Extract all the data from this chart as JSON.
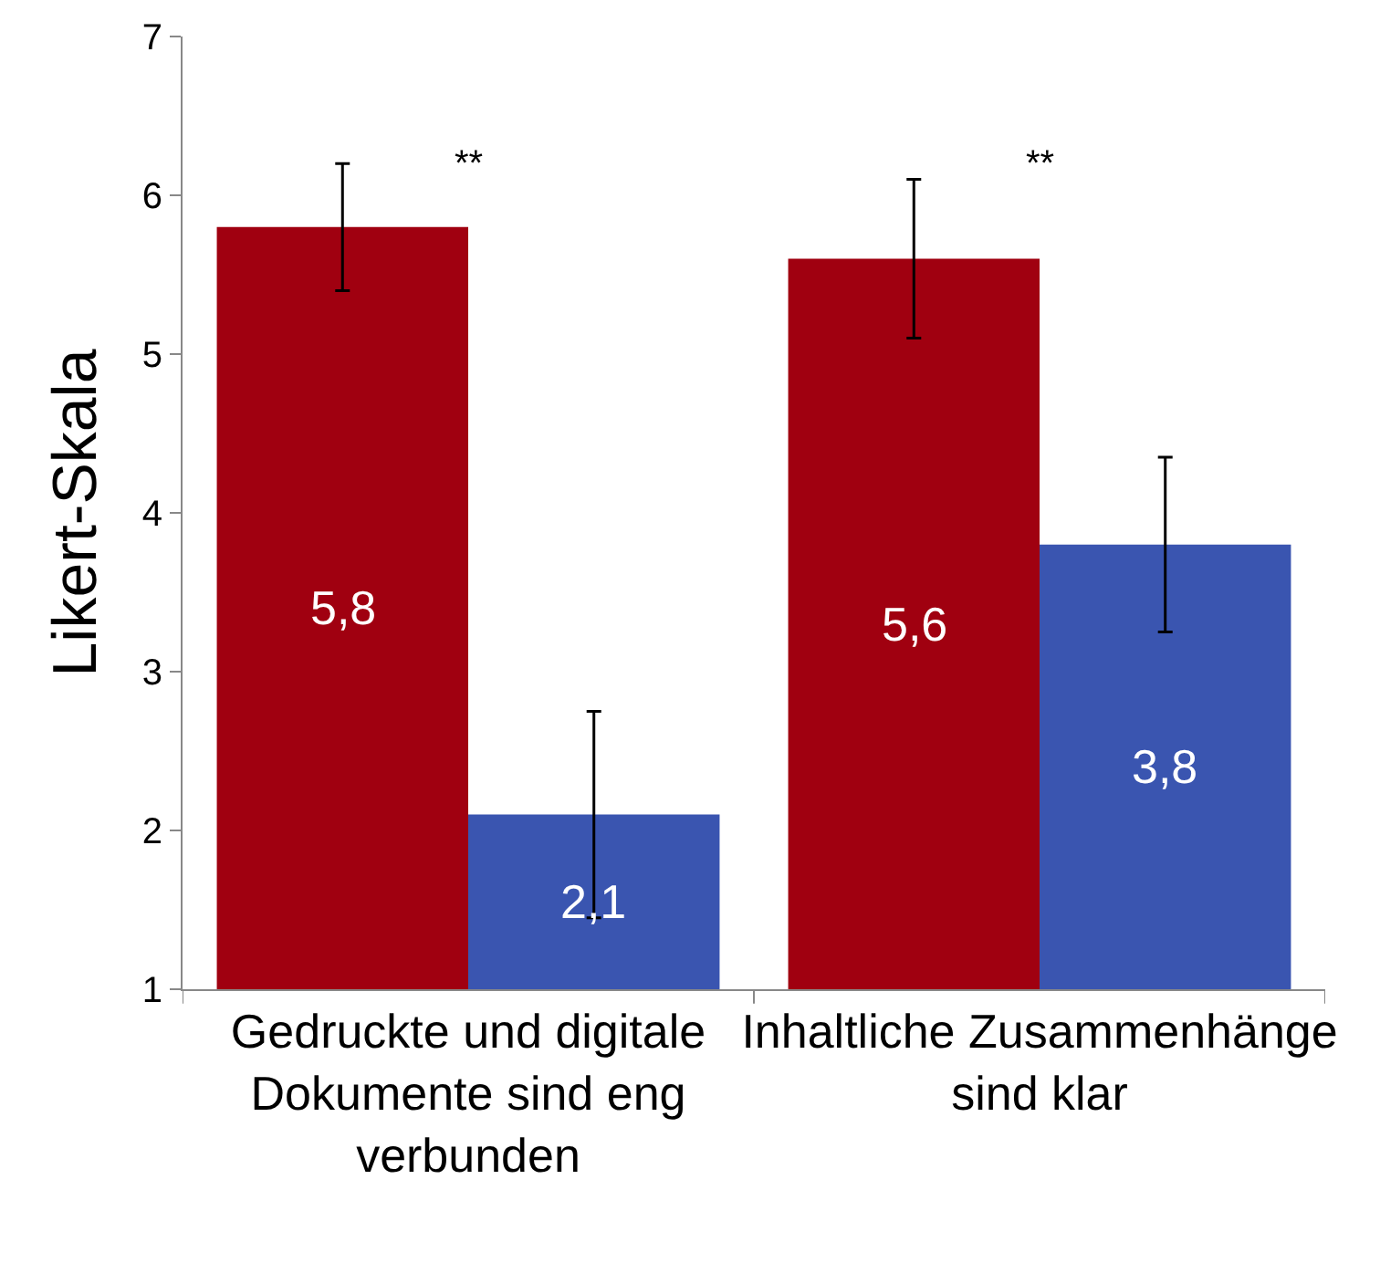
{
  "chart_data": {
    "type": "bar",
    "ylabel": "Likert-Skala",
    "categories": [
      "Gedruckte und digitale Dokumente sind eng verbunden",
      "Inhaltliche Zusammenhänge sind klar"
    ],
    "series": [
      {
        "color": "#a00010",
        "values": [
          5.8,
          5.6
        ],
        "errors": [
          0.4,
          0.5
        ],
        "value_labels": [
          "5,8",
          "5,6"
        ]
      },
      {
        "color": "#3a55b0",
        "values": [
          2.1,
          3.8
        ],
        "errors": [
          0.65,
          0.55
        ],
        "value_labels": [
          "2,1",
          "3,8"
        ]
      }
    ],
    "ylim": [
      1,
      7
    ],
    "yticks": [
      1,
      2,
      3,
      4,
      5,
      6,
      7
    ],
    "grid": false,
    "annotations": [
      "**",
      "**"
    ]
  }
}
